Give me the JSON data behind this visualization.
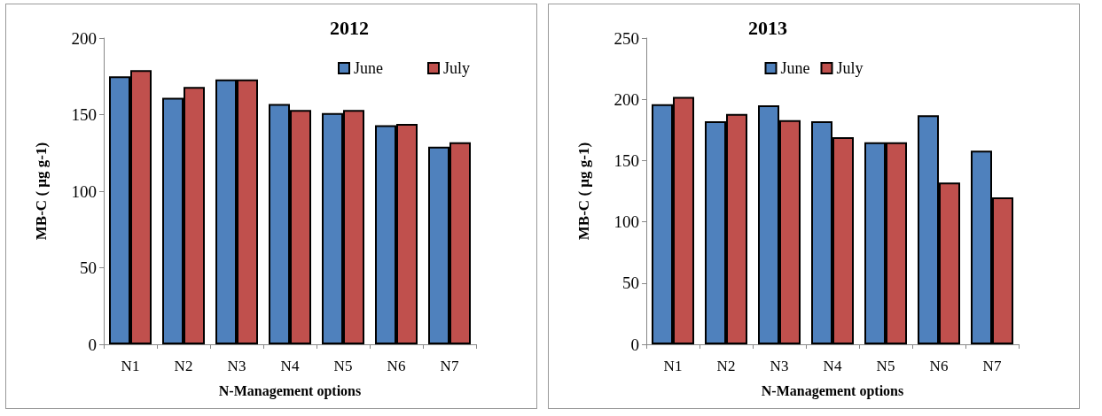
{
  "chart_data": [
    {
      "type": "bar",
      "title": "2012",
      "xlabel": "N-Management options",
      "ylabel": "MB-C ( µg g-1)",
      "categories": [
        "N1",
        "N2",
        "N3",
        "N4",
        "N5",
        "N6",
        "N7"
      ],
      "series": [
        {
          "name": "June",
          "color": "#4f81bd",
          "values": [
            175,
            161,
            173,
            157,
            151,
            143,
            129
          ]
        },
        {
          "name": "July",
          "color": "#c0504d",
          "values": [
            179,
            168,
            173,
            153,
            153,
            144,
            132
          ]
        }
      ],
      "ylim": [
        0,
        200
      ],
      "yticks": [
        0,
        50,
        100,
        150,
        200
      ],
      "grid": false,
      "legend": "top right"
    },
    {
      "type": "bar",
      "title": "2013",
      "xlabel": "N-Management options",
      "ylabel": "MB-C ( µg g-1)",
      "categories": [
        "N1",
        "N2",
        "N3",
        "N4",
        "N5",
        "N6",
        "N7"
      ],
      "series": [
        {
          "name": "June",
          "color": "#4f81bd",
          "values": [
            196,
            182,
            195,
            182,
            165,
            187,
            158
          ]
        },
        {
          "name": "July",
          "color": "#c0504d",
          "values": [
            202,
            188,
            183,
            169,
            165,
            132,
            120
          ]
        }
      ],
      "ylim": [
        0,
        250
      ],
      "yticks": [
        0,
        50,
        100,
        150,
        200,
        250
      ],
      "grid": false,
      "legend": "top"
    }
  ]
}
